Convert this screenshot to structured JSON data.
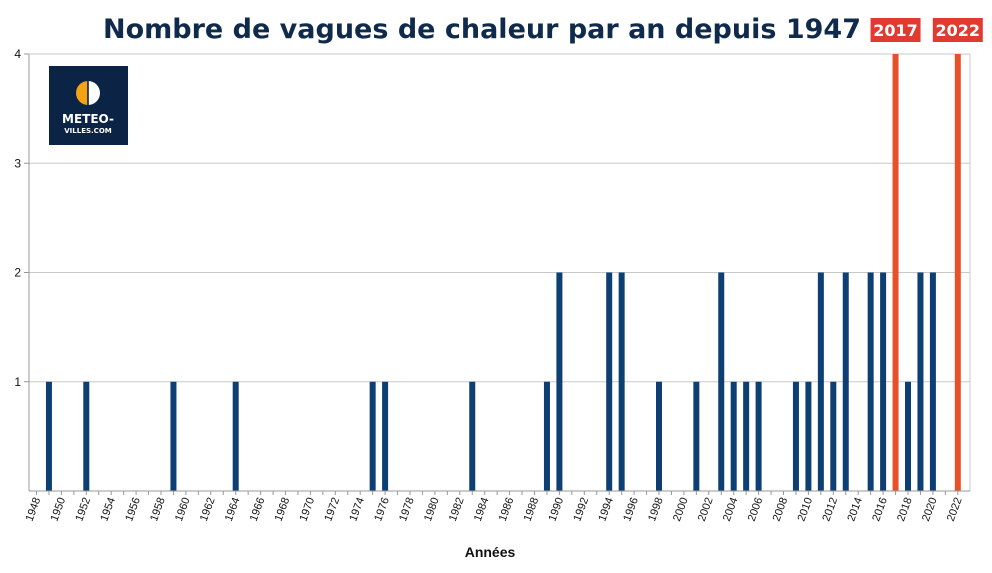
{
  "chart_data": {
    "type": "bar",
    "title": "Nombre de vagues de chaleur par an depuis 1947",
    "xlabel": "Années",
    "ylabel": "",
    "ylim": [
      0,
      4
    ],
    "yticks": [
      "1",
      "2",
      "3",
      "4"
    ],
    "grid": true,
    "year_range": [
      1948,
      2022
    ],
    "xtick_labels": [
      "1948",
      "1950",
      "1952",
      "1954",
      "1956",
      "1958",
      "1960",
      "1962",
      "1964",
      "1966",
      "1968",
      "1970",
      "1972",
      "1974",
      "1976",
      "1978",
      "1980",
      "1982",
      "1984",
      "1986",
      "1988",
      "1990",
      "1992",
      "1994",
      "1996",
      "1998",
      "2000",
      "2002",
      "2004",
      "2006",
      "2008",
      "2010",
      "2012",
      "2014",
      "2016",
      "2018",
      "2020",
      "2022"
    ],
    "bars": [
      {
        "year": 1949,
        "value": 1
      },
      {
        "year": 1952,
        "value": 1
      },
      {
        "year": 1959,
        "value": 1
      },
      {
        "year": 1964,
        "value": 1
      },
      {
        "year": 1975,
        "value": 1
      },
      {
        "year": 1976,
        "value": 1
      },
      {
        "year": 1983,
        "value": 1
      },
      {
        "year": 1989,
        "value": 1
      },
      {
        "year": 1990,
        "value": 2
      },
      {
        "year": 1994,
        "value": 2
      },
      {
        "year": 1995,
        "value": 2
      },
      {
        "year": 1998,
        "value": 1
      },
      {
        "year": 2001,
        "value": 1
      },
      {
        "year": 2003,
        "value": 2
      },
      {
        "year": 2004,
        "value": 1
      },
      {
        "year": 2005,
        "value": 1
      },
      {
        "year": 2006,
        "value": 1
      },
      {
        "year": 2009,
        "value": 1
      },
      {
        "year": 2010,
        "value": 1
      },
      {
        "year": 2011,
        "value": 2
      },
      {
        "year": 2012,
        "value": 1
      },
      {
        "year": 2013,
        "value": 2
      },
      {
        "year": 2015,
        "value": 2
      },
      {
        "year": 2016,
        "value": 2
      },
      {
        "year": 2017,
        "value": 4,
        "highlight": true
      },
      {
        "year": 2018,
        "value": 1
      },
      {
        "year": 2019,
        "value": 2
      },
      {
        "year": 2020,
        "value": 2
      },
      {
        "year": 2022,
        "value": 4,
        "highlight": true
      }
    ],
    "annotations": [
      {
        "label": "2017",
        "year": 2017
      },
      {
        "label": "2022",
        "year": 2022
      }
    ],
    "colors": {
      "bar": "#0d3f73",
      "highlight": "#e8502a",
      "annotation_bg": "#e03a31",
      "title": "#0f2a4a",
      "grid": "#c8c8c8"
    }
  },
  "logo": {
    "line1": "METEO-",
    "line2": "VILLES.COM",
    "bg": "#0b2446",
    "accent": "#f5a214"
  }
}
